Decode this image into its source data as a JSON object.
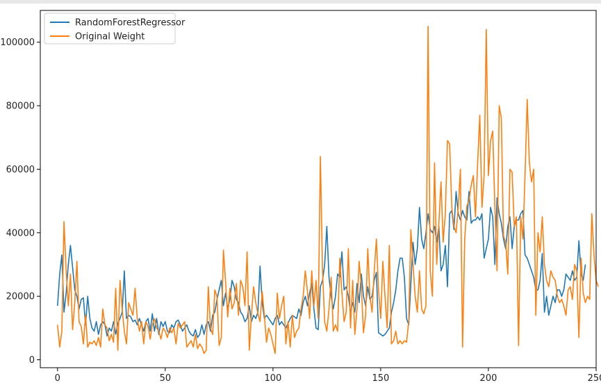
{
  "chart_data": {
    "type": "line",
    "title": "",
    "xlabel": "",
    "ylabel": "",
    "xlim": [
      -8,
      250
    ],
    "ylim": [
      -2500,
      110000
    ],
    "x_ticks": [
      0,
      50,
      100,
      150,
      200,
      250
    ],
    "y_ticks": [
      0,
      20000,
      40000,
      60000,
      80000,
      100000
    ],
    "x_tick_labels": [
      "0",
      "50",
      "100",
      "150",
      "200",
      "250"
    ],
    "y_tick_labels": [
      "0",
      "20000",
      "40000",
      "60000",
      "80000",
      "100000"
    ],
    "legend_position": "top-left",
    "series": [
      {
        "name": "RandomForestRegressor",
        "color": "#1f77b4",
        "values": [
          17000,
          27000,
          33000,
          15000,
          21000,
          30000,
          36000,
          29000,
          22000,
          20000,
          16000,
          19000,
          19500,
          11000,
          20000,
          13000,
          10000,
          9000,
          12000,
          8000,
          11000,
          12000,
          11000,
          7500,
          10000,
          9000,
          12000,
          8000,
          11500,
          13000,
          15000,
          28000,
          13000,
          14000,
          13500,
          12000,
          12500,
          11000,
          13000,
          11000,
          9000,
          12000,
          13000,
          9000,
          14500,
          9000,
          13000,
          8000,
          12000,
          10500,
          12000,
          9000,
          8500,
          11000,
          10000,
          12000,
          12500,
          11000,
          9000,
          10000,
          11000,
          9000,
          8000,
          7500,
          9500,
          7000,
          8000,
          11000,
          8000,
          11000,
          12000,
          9000,
          14000,
          15000,
          19000,
          22000,
          25000,
          17000,
          21000,
          16000,
          19000,
          25000,
          23000,
          19000,
          18000,
          15000,
          14000,
          12000,
          13000,
          17000,
          12000,
          14000,
          13000,
          15000,
          29500,
          18000,
          13000,
          14000,
          13000,
          12000,
          11000,
          13000,
          14000,
          11000,
          12000,
          11000,
          10000,
          11500,
          13000,
          14000,
          13500,
          13000,
          16000,
          14000,
          18000,
          20000,
          17000,
          21000,
          24000,
          16000,
          10000,
          9500,
          23000,
          25000,
          30000,
          42000,
          26000,
          20000,
          16000,
          20000,
          27000,
          26000,
          34000,
          22000,
          23000,
          20000,
          15000,
          18000,
          15000,
          24000,
          18000,
          27000,
          20000,
          17000,
          23000,
          19000,
          20000,
          25000,
          27500,
          8500,
          8000,
          7500,
          8000,
          9000,
          10000,
          15000,
          18000,
          22000,
          28000,
          32000,
          32000,
          26000,
          13000,
          11000,
          24000,
          37000,
          30000,
          35000,
          48000,
          38000,
          35000,
          40000,
          46000,
          41000,
          40000,
          42000,
          37000,
          42000,
          28000,
          30000,
          36000,
          23000,
          46000,
          47000,
          41000,
          53000,
          46000,
          44000,
          47000,
          45000,
          44000,
          53000,
          43000,
          44000,
          44000,
          45000,
          44000,
          46000,
          32000,
          35000,
          38000,
          48000,
          45000,
          30000,
          51000,
          46000,
          43000,
          38000,
          35000,
          42000,
          45000,
          35000,
          42000,
          44000,
          44000,
          46000,
          47000,
          33000,
          32000,
          30000,
          28000,
          26000,
          22000,
          22000,
          25000,
          33500,
          15000,
          20000,
          14000,
          17000,
          20000,
          18000,
          22000,
          22000,
          20000,
          22000,
          27000,
          26000,
          25000,
          28000,
          25000,
          26000,
          37500,
          27000,
          25000,
          30000
        ]
      },
      {
        "name": "Original Weight",
        "color": "#ff7f0e",
        "values": [
          11000,
          4000,
          9000,
          43500,
          28000,
          17000,
          27000,
          9500,
          18000,
          31000,
          12000,
          10500,
          5000,
          14000,
          4000,
          5500,
          5000,
          6000,
          4500,
          7000,
          4000,
          16000,
          11000,
          10000,
          6000,
          8000,
          5500,
          22500,
          3000,
          25000,
          16000,
          9000,
          5000,
          18000,
          16000,
          14000,
          22500,
          13000,
          9000,
          12000,
          5000,
          12000,
          10500,
          6500,
          11000,
          13000,
          10000,
          9000,
          6500,
          10000,
          9000,
          7000,
          10000,
          8500,
          10000,
          5000,
          11500,
          10000,
          11000,
          12000,
          4000,
          5000,
          6000,
          4000,
          8000,
          3500,
          5000,
          4000,
          2000,
          3000,
          23000,
          10000,
          8000,
          22000,
          20000,
          4500,
          7000,
          34500,
          24500,
          13500,
          22500,
          16000,
          18000,
          24000,
          14000,
          25000,
          23000,
          17000,
          34000,
          3000,
          14000,
          23000,
          18000,
          14500,
          12000,
          21500,
          14000,
          5500,
          10000,
          8000,
          5000,
          2000,
          21000,
          13000,
          17000,
          20000,
          5000,
          12000,
          4000,
          14000,
          7000,
          9000,
          10000,
          16000,
          20000,
          28000,
          21500,
          13000,
          28000,
          17000,
          25000,
          13000,
          64000,
          28000,
          12000,
          9000,
          16000,
          26000,
          9000,
          11000,
          9000,
          32000,
          21000,
          12000,
          15000,
          35000,
          10000,
          25000,
          8000,
          16000,
          31000,
          23000,
          8500,
          14000,
          35000,
          20000,
          15000,
          28000,
          38000,
          22000,
          13000,
          31000,
          20000,
          10000,
          36000,
          5000,
          6000,
          9000,
          5000,
          6000,
          5000,
          6000,
          5500,
          12000,
          41000,
          30000,
          20000,
          15000,
          28000,
          16000,
          14500,
          17000,
          105000,
          28000,
          20000,
          62000,
          30000,
          43000,
          56000,
          37000,
          46000,
          69000,
          68000,
          48000,
          42000,
          40000,
          48000,
          60000,
          4000,
          38000,
          48500,
          50000,
          55000,
          58000,
          45000,
          62000,
          77000,
          48000,
          58000,
          104000,
          58000,
          69000,
          72000,
          48000,
          28000,
          80000,
          76000,
          39000,
          37000,
          27000,
          60000,
          59000,
          42000,
          45000,
          4500,
          45000,
          38000,
          58000,
          82000,
          62000,
          56000,
          60000,
          14000,
          40000,
          34000,
          45000,
          30000,
          25000,
          23000,
          28000,
          26000,
          25000,
          20000,
          18000,
          19000,
          17000,
          14000,
          22000,
          23000,
          19000,
          30000,
          28000,
          7000,
          32000,
          21000,
          18000,
          20000,
          19000,
          46000,
          33000,
          25000,
          23000
        ]
      }
    ]
  }
}
